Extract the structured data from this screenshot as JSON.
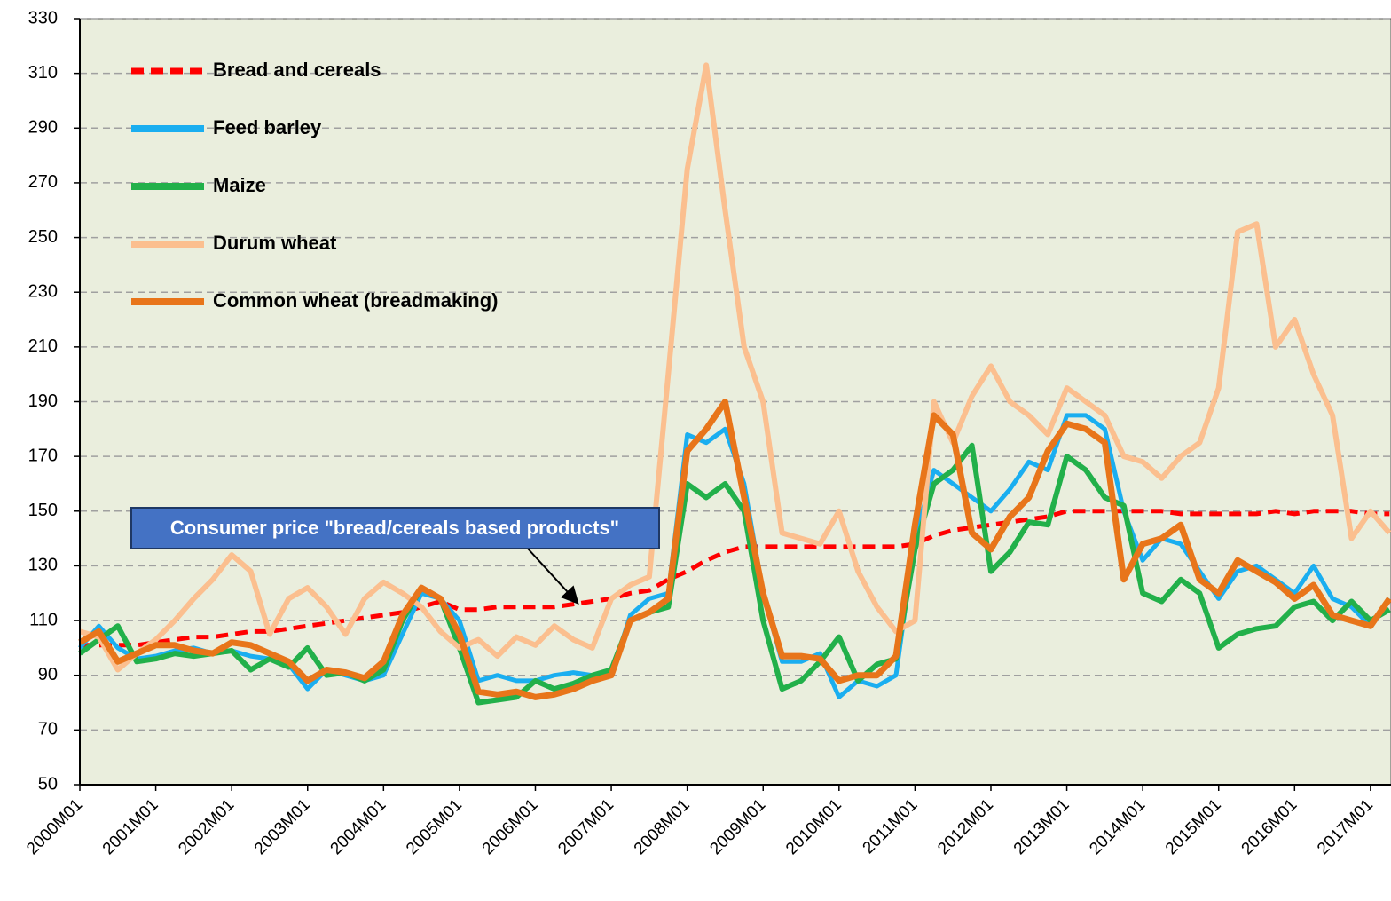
{
  "chart_data": {
    "type": "line",
    "x": [
      2000,
      2000.25,
      2000.5,
      2000.75,
      2001,
      2001.25,
      2001.5,
      2001.75,
      2002,
      2002.25,
      2002.5,
      2002.75,
      2003,
      2003.25,
      2003.5,
      2003.75,
      2004,
      2004.25,
      2004.5,
      2004.75,
      2005,
      2005.25,
      2005.5,
      2005.75,
      2006,
      2006.25,
      2006.5,
      2006.75,
      2007,
      2007.25,
      2007.5,
      2007.75,
      2008,
      2008.25,
      2008.5,
      2008.75,
      2009,
      2009.25,
      2009.5,
      2009.75,
      2010,
      2010.25,
      2010.5,
      2010.75,
      2011,
      2011.25,
      2011.5,
      2011.75,
      2012,
      2012.25,
      2012.5,
      2012.75,
      2013,
      2013.25,
      2013.5,
      2013.75,
      2014,
      2014.25,
      2014.5,
      2014.75,
      2015,
      2015.25,
      2015.5,
      2015.75,
      2016,
      2016.25,
      2016.5,
      2016.75,
      2017,
      2017.25
    ],
    "series": [
      {
        "name": "Bread and cereals",
        "color": "#ff0000",
        "dashed": true,
        "values": [
          101,
          101,
          101,
          101,
          102,
          103,
          104,
          104,
          105,
          106,
          106,
          107,
          108,
          109,
          110,
          111,
          112,
          113,
          115,
          117,
          114,
          114,
          115,
          115,
          115,
          115,
          116,
          117,
          118,
          120,
          121,
          125,
          128,
          132,
          135,
          137,
          137,
          137,
          137,
          137,
          137,
          137,
          137,
          137,
          138,
          141,
          143,
          144,
          145,
          146,
          147,
          148,
          150,
          150,
          150,
          150,
          150,
          150,
          149,
          149,
          149,
          149,
          149,
          150,
          149,
          150,
          150,
          150,
          149,
          149
        ]
      },
      {
        "name": "Feed barley",
        "color": "#1aaef0",
        "values": [
          100,
          108,
          100,
          96,
          97,
          99,
          100,
          98,
          99,
          97,
          96,
          94,
          85,
          92,
          90,
          88,
          90,
          105,
          120,
          118,
          110,
          88,
          90,
          88,
          88,
          90,
          91,
          90,
          90,
          112,
          118,
          120,
          178,
          175,
          180,
          160,
          120,
          95,
          95,
          98,
          82,
          88,
          86,
          90,
          140,
          165,
          160,
          155,
          150,
          158,
          168,
          165,
          185,
          185,
          180,
          150,
          132,
          140,
          138,
          128,
          118,
          128,
          130,
          125,
          120,
          130,
          118,
          115,
          108,
          118
        ]
      },
      {
        "name": "Maize",
        "color": "#22b04a",
        "values": [
          98,
          103,
          108,
          95,
          96,
          98,
          97,
          98,
          99,
          92,
          96,
          93,
          100,
          90,
          91,
          88,
          92,
          110,
          122,
          118,
          100,
          80,
          81,
          82,
          88,
          85,
          87,
          90,
          92,
          110,
          113,
          115,
          160,
          155,
          160,
          150,
          110,
          85,
          88,
          95,
          104,
          88,
          94,
          96,
          136,
          160,
          165,
          174,
          128,
          135,
          146,
          145,
          170,
          165,
          155,
          152,
          120,
          117,
          125,
          120,
          100,
          105,
          107,
          108,
          115,
          117,
          110,
          117,
          110,
          114
        ]
      },
      {
        "name": "Durum  wheat",
        "color": "#fbbf8f",
        "values": [
          106,
          104,
          92,
          98,
          103,
          110,
          118,
          125,
          134,
          128,
          105,
          118,
          122,
          115,
          105,
          118,
          124,
          120,
          115,
          106,
          100,
          103,
          97,
          104,
          101,
          108,
          103,
          100,
          118,
          123,
          126,
          200,
          275,
          313,
          260,
          210,
          190,
          142,
          140,
          138,
          150,
          128,
          115,
          106,
          110,
          190,
          175,
          192,
          203,
          190,
          185,
          178,
          195,
          190,
          185,
          170,
          168,
          162,
          170,
          175,
          195,
          252,
          255,
          210,
          220,
          200,
          185,
          140,
          150,
          142
        ]
      },
      {
        "name": "Common wheat (breadmaking)",
        "color": "#e8751a",
        "values": [
          102,
          106,
          95,
          98,
          101,
          101,
          99,
          98,
          102,
          101,
          98,
          95,
          88,
          92,
          91,
          89,
          95,
          112,
          122,
          118,
          105,
          84,
          83,
          84,
          82,
          83,
          85,
          88,
          90,
          110,
          113,
          118,
          172,
          180,
          190,
          155,
          120,
          97,
          97,
          96,
          88,
          90,
          90,
          97,
          145,
          185,
          178,
          142,
          136,
          148,
          155,
          172,
          182,
          180,
          175,
          125,
          138,
          140,
          145,
          125,
          120,
          132,
          128,
          124,
          118,
          123,
          112,
          110,
          108,
          118
        ]
      }
    ],
    "xlim": [
      2000,
      2017.27
    ],
    "xticks": [
      {
        "value": 2000,
        "label": "2000M01"
      },
      {
        "value": 2001,
        "label": "2001M01"
      },
      {
        "value": 2002,
        "label": "2002M01"
      },
      {
        "value": 2003,
        "label": "2003M01"
      },
      {
        "value": 2004,
        "label": "2004M01"
      },
      {
        "value": 2005,
        "label": "2005M01"
      },
      {
        "value": 2006,
        "label": "2006M01"
      },
      {
        "value": 2007,
        "label": "2007M01"
      },
      {
        "value": 2008,
        "label": "2008M01"
      },
      {
        "value": 2009,
        "label": "2009M01"
      },
      {
        "value": 2010,
        "label": "2010M01"
      },
      {
        "value": 2011,
        "label": "2011M01"
      },
      {
        "value": 2012,
        "label": "2012M01"
      },
      {
        "value": 2013,
        "label": "2013M01"
      },
      {
        "value": 2014,
        "label": "2014M01"
      },
      {
        "value": 2015,
        "label": "2015M01"
      },
      {
        "value": 2016,
        "label": "2016M01"
      },
      {
        "value": 2017,
        "label": "2017M01"
      }
    ],
    "ylim": [
      50,
      330
    ],
    "yticks": [
      50,
      70,
      90,
      110,
      130,
      150,
      170,
      190,
      210,
      230,
      250,
      270,
      290,
      310,
      330
    ],
    "grid": true,
    "legend": "upper left",
    "annotation": "Consumer price \"bread/cereals based products\""
  }
}
